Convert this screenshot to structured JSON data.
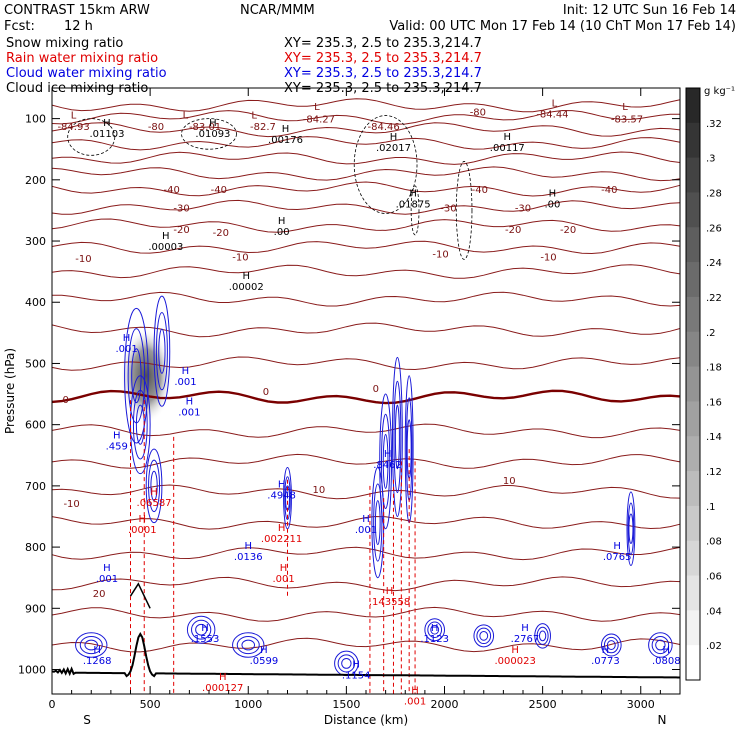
{
  "header": {
    "model": "CONTRAST 15km ARW",
    "center": "NCAR/MMM",
    "init": "Init: 12 UTC Sun 16 Feb 14",
    "fcst_label": "Fcst:",
    "fcst_value": "12 h",
    "valid": "Valid: 00 UTC Mon 17 Feb 14 (10 ChT Mon 17 Feb 14)"
  },
  "legend": [
    {
      "name": "Snow mixing ratio",
      "xy": "XY= 235.3,  2.5 to 235.3,214.7",
      "color": "#000000"
    },
    {
      "name": "Rain water mixing ratio",
      "xy": "XY= 235.3,  2.5 to 235.3,214.7",
      "color": "#e00000"
    },
    {
      "name": "Cloud water mixing ratio",
      "xy": "XY= 235.3,  2.5 to 235.3,214.7",
      "color": "#0000e0"
    },
    {
      "name": "Cloud ice mixing ratio",
      "xy": "XY= 235.3,  2.5 to 235.3,214.7",
      "color": "#000000"
    }
  ],
  "colorbar": {
    "unit": "g kg⁻¹",
    "ticks": [
      ".32",
      ".3",
      ".28",
      ".26",
      ".24",
      ".22",
      ".2",
      ".18",
      ".16",
      ".14",
      ".12",
      ".1",
      ".08",
      ".06",
      ".04",
      ".02"
    ],
    "range": [
      0,
      0.34
    ]
  },
  "chart_data": {
    "type": "contour",
    "xlabel": "Distance (km)",
    "ylabel": "Pressure (hPa)",
    "xlim": [
      0,
      3200
    ],
    "ylim": [
      1040,
      50
    ],
    "x_ticks": [
      0,
      500,
      1000,
      1500,
      2000,
      2500,
      3000
    ],
    "y_ticks": [
      100,
      200,
      300,
      400,
      500,
      600,
      700,
      800,
      900,
      1000
    ],
    "x_end_labels": {
      "left": "S",
      "right": "N"
    },
    "isotherms": [
      {
        "label": "-80",
        "p": 95
      },
      {
        "label": "-40",
        "p": 215
      },
      {
        "label": "-30",
        "p": 245
      },
      {
        "label": "-20",
        "p": 280
      },
      {
        "label": "-10",
        "p": 325
      },
      {
        "label": "0",
        "p": 555
      },
      {
        "label": "10",
        "p": 690
      },
      {
        "label": "20",
        "p": 880
      }
    ],
    "temperature_labels": [
      {
        "text": "-84.93",
        "x": 110,
        "p": 112
      },
      {
        "text": "-80",
        "x": 530,
        "p": 112
      },
      {
        "text": "-83.01",
        "x": 780,
        "p": 112
      },
      {
        "text": "-82.7",
        "x": 1075,
        "p": 112
      },
      {
        "text": "-84.27",
        "x": 1360,
        "p": 100
      },
      {
        "text": "-84.46",
        "x": 1690,
        "p": 112
      },
      {
        "text": "-80",
        "x": 2170,
        "p": 88
      },
      {
        "text": "-84.44",
        "x": 2550,
        "p": 92
      },
      {
        "text": "-83.57",
        "x": 2930,
        "p": 100
      },
      {
        "text": "-40",
        "x": 610,
        "p": 215
      },
      {
        "text": "-40",
        "x": 850,
        "p": 215
      },
      {
        "text": "-40",
        "x": 2180,
        "p": 215
      },
      {
        "text": "-40",
        "x": 2840,
        "p": 215
      },
      {
        "text": "-30",
        "x": 660,
        "p": 245
      },
      {
        "text": "-30",
        "x": 2020,
        "p": 245
      },
      {
        "text": "-30",
        "x": 2400,
        "p": 245
      },
      {
        "text": "-20",
        "x": 660,
        "p": 280
      },
      {
        "text": "-20",
        "x": 860,
        "p": 285
      },
      {
        "text": "-20",
        "x": 2350,
        "p": 280
      },
      {
        "text": "-20",
        "x": 2630,
        "p": 280
      },
      {
        "text": "-10",
        "x": 160,
        "p": 328
      },
      {
        "text": "-10",
        "x": 960,
        "p": 325
      },
      {
        "text": "-10",
        "x": 1980,
        "p": 320
      },
      {
        "text": "-10",
        "x": 2530,
        "p": 325
      },
      {
        "text": "0",
        "x": 70,
        "p": 558
      },
      {
        "text": "0",
        "x": 1090,
        "p": 545
      },
      {
        "text": "0",
        "x": 1650,
        "p": 540
      },
      {
        "text": "-10",
        "x": 100,
        "p": 728
      },
      {
        "text": "10",
        "x": 1360,
        "p": 705
      },
      {
        "text": "10",
        "x": 2330,
        "p": 690
      },
      {
        "text": "20",
        "x": 240,
        "p": 875
      }
    ],
    "maxima": [
      {
        "text": ".01103",
        "x": 280,
        "p": 125,
        "color": "#000000"
      },
      {
        "text": ".01093",
        "x": 820,
        "p": 125,
        "color": "#000000"
      },
      {
        "text": ".00176",
        "x": 1190,
        "p": 135,
        "color": "#000000"
      },
      {
        "text": ".02017",
        "x": 1740,
        "p": 148,
        "color": "#000000"
      },
      {
        "text": ".00117",
        "x": 2320,
        "p": 148,
        "color": "#000000"
      },
      {
        "text": ".01875",
        "x": 1840,
        "p": 240,
        "color": "#000000"
      },
      {
        "text": ".00",
        "x": 2550,
        "p": 240,
        "color": "#000000"
      },
      {
        "text": ".00",
        "x": 1170,
        "p": 285,
        "color": "#000000"
      },
      {
        "text": ".00003",
        "x": 580,
        "p": 310,
        "color": "#000000"
      },
      {
        "text": ".00002",
        "x": 990,
        "p": 375,
        "color": "#000000"
      },
      {
        "text": ".001",
        "x": 380,
        "p": 476,
        "color": "#0000e0"
      },
      {
        "text": ".001",
        "x": 680,
        "p": 530,
        "color": "#0000e0"
      },
      {
        "text": ".001",
        "x": 700,
        "p": 580,
        "color": "#0000e0"
      },
      {
        "text": ".459",
        "x": 330,
        "p": 636,
        "color": "#0000e0"
      },
      {
        "text": ".8462",
        "x": 1710,
        "p": 666,
        "color": "#0000e0"
      },
      {
        "text": ".4948",
        "x": 1170,
        "p": 716,
        "color": "#0000e0"
      },
      {
        "text": ".06587",
        "x": 520,
        "p": 728,
        "color": "#e00000"
      },
      {
        "text": ".0001",
        "x": 460,
        "p": 772,
        "color": "#e00000"
      },
      {
        "text": ".001",
        "x": 1600,
        "p": 772,
        "color": "#0000e0"
      },
      {
        "text": ".002211",
        "x": 1170,
        "p": 787,
        "color": "#e00000"
      },
      {
        "text": ".0136",
        "x": 1000,
        "p": 816,
        "color": "#0000e0"
      },
      {
        "text": ".0765",
        "x": 2880,
        "p": 816,
        "color": "#0000e0"
      },
      {
        "text": ".001",
        "x": 280,
        "p": 852,
        "color": "#0000e0"
      },
      {
        "text": ".001",
        "x": 1180,
        "p": 852,
        "color": "#e00000"
      },
      {
        "text": ".143558",
        "x": 1720,
        "p": 890,
        "color": "#e00000"
      },
      {
        "text": ".1553",
        "x": 780,
        "p": 950,
        "color": "#0000e0"
      },
      {
        "text": ".1123",
        "x": 1950,
        "p": 950,
        "color": "#0000e0"
      },
      {
        "text": ".2767",
        "x": 2410,
        "p": 950,
        "color": "#0000e0"
      },
      {
        "text": ".1268",
        "x": 230,
        "p": 986,
        "color": "#0000e0"
      },
      {
        "text": ".0599",
        "x": 1080,
        "p": 986,
        "color": "#0000e0"
      },
      {
        "text": ".000023",
        "x": 2360,
        "p": 986,
        "color": "#e00000"
      },
      {
        "text": ".0773",
        "x": 2820,
        "p": 986,
        "color": "#0000e0"
      },
      {
        "text": ".0808",
        "x": 3130,
        "p": 986,
        "color": "#0000e0"
      },
      {
        "text": ".1154",
        "x": 1550,
        "p": 1010,
        "color": "#0000e0"
      },
      {
        "text": ".000127",
        "x": 870,
        "p": 1030,
        "color": "#e00000"
      },
      {
        "text": ".001",
        "x": 1850,
        "p": 1052,
        "color": "#e00000"
      }
    ],
    "minima_markers": [
      {
        "text": "L",
        "x": 110,
        "p": 100
      },
      {
        "text": "L",
        "x": 680,
        "p": 100
      },
      {
        "text": "L",
        "x": 1030,
        "p": 100
      },
      {
        "text": "L",
        "x": 1350,
        "p": 86
      },
      {
        "text": "L",
        "x": 2560,
        "p": 80
      },
      {
        "text": "L",
        "x": 2920,
        "p": 86
      }
    ]
  }
}
